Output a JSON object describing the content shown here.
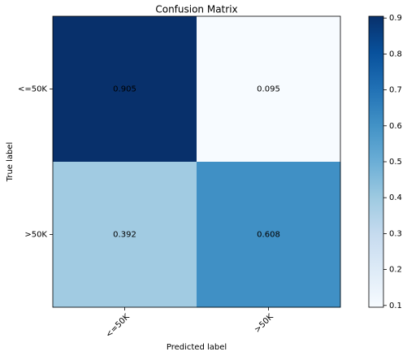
{
  "chart_data": {
    "type": "heatmap",
    "title": "Confusion Matrix",
    "x_label": "Predicted label",
    "y_label": "True label",
    "x_categories": [
      "<=50K",
      ">50K"
    ],
    "y_categories": [
      "<=50K",
      ">50K"
    ],
    "values": [
      [
        0.905,
        0.095
      ],
      [
        0.392,
        0.608
      ]
    ],
    "colormap": "Blues",
    "clim": [
      0.095,
      0.905
    ],
    "colorbar_ticks": [
      0.1,
      0.2,
      0.3,
      0.4,
      0.5,
      0.6,
      0.7,
      0.8,
      0.9
    ]
  }
}
